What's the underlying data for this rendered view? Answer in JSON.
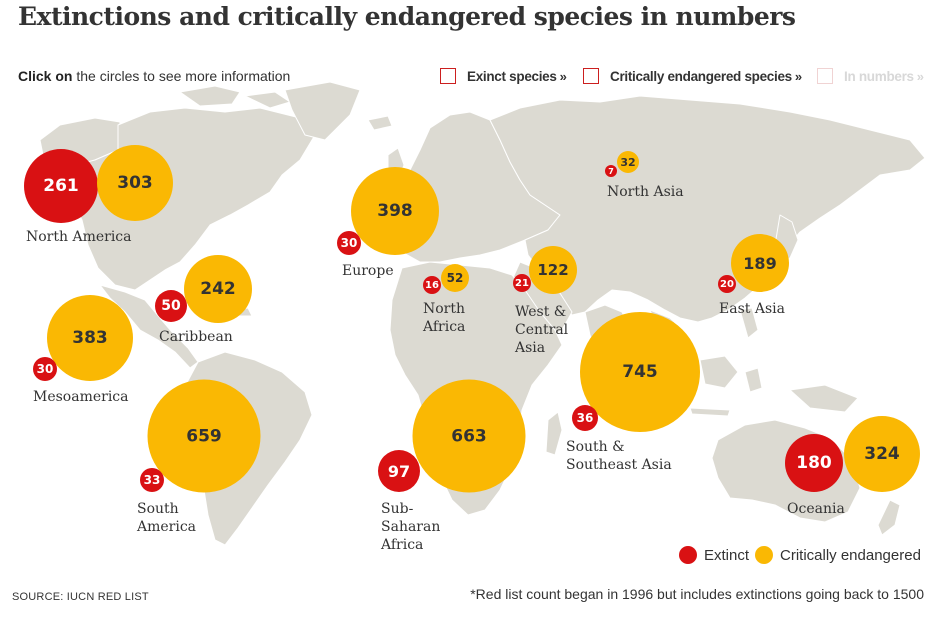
{
  "title": "Extinctions and critically endangered species in numbers",
  "instruction": {
    "bold": "Click on",
    "rest": "the circles to see more information"
  },
  "tabs": [
    {
      "label": "Exinct species",
      "chevron": "»"
    },
    {
      "label": "Critically endangered species",
      "chevron": "»"
    },
    {
      "label": "In numbers",
      "chevron": "»"
    }
  ],
  "colors": {
    "extinct": "#d91113",
    "critical": "#fab803",
    "land": "#dcdad2",
    "land_light": "#e7e5de"
  },
  "regions": {
    "north_america": {
      "name": "North America",
      "extinct": 261,
      "critical": 303
    },
    "caribbean": {
      "name": "Caribbean",
      "extinct": 50,
      "critical": 242
    },
    "mesoamerica": {
      "name": "Mesoamerica",
      "extinct": 30,
      "critical": 383
    },
    "south_america": {
      "name": "South America",
      "extinct": 33,
      "critical": 659
    },
    "europe": {
      "name": "Europe",
      "extinct": 30,
      "critical": 398
    },
    "north_africa": {
      "name": "North Africa",
      "extinct": 16,
      "critical": 52
    },
    "sub_saharan_africa": {
      "name": "Sub-Saharan Africa",
      "extinct": 97,
      "critical": 663
    },
    "west_central_asia": {
      "name": "West & Central Asia",
      "extinct": 21,
      "critical": 122
    },
    "north_asia": {
      "name": "North Asia",
      "extinct": 7,
      "critical": 32
    },
    "east_asia": {
      "name": "East Asia",
      "extinct": 20,
      "critical": 189
    },
    "south_southeast_asia": {
      "name": "South & Southeast Asia",
      "extinct": 36,
      "critical": 745
    },
    "oceania": {
      "name": "Oceania",
      "extinct": 180,
      "critical": 324
    }
  },
  "legend": {
    "extinct": "Extinct",
    "critical": "Critically endangered"
  },
  "source": "SOURCE: IUCN RED LIST",
  "footnote": "*Red list count began in 1996 but includes extinctions going back to 1500"
}
